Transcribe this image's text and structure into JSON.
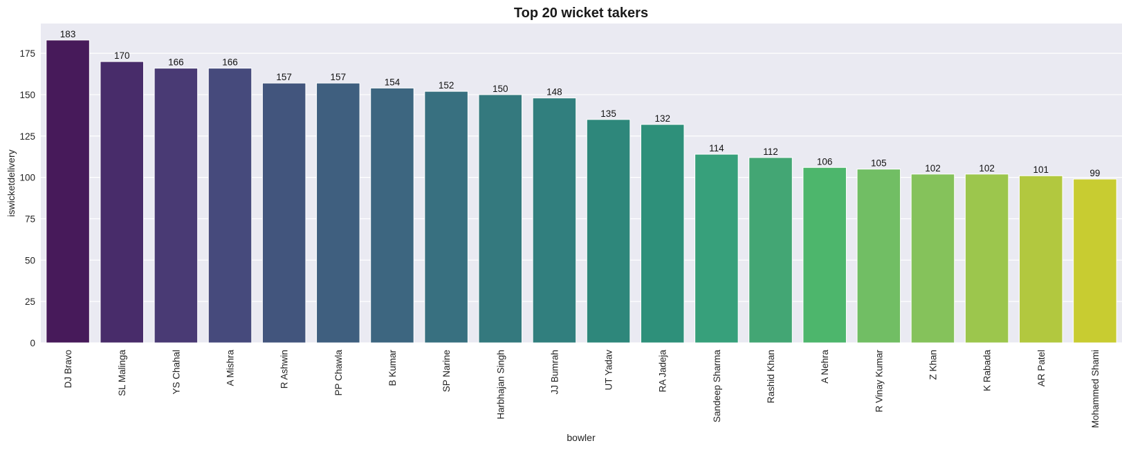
{
  "chart_data": {
    "type": "bar",
    "title": "Top 20 wicket takers",
    "xlabel": "bowler",
    "ylabel": "iswicketdelivery",
    "ylim": [
      0,
      193
    ],
    "yticks": [
      0,
      25,
      50,
      75,
      100,
      125,
      150,
      175
    ],
    "grid": true,
    "background": "#eaeaf2",
    "colormap": "viridis",
    "categories": [
      "DJ Bravo",
      "SL Malinga",
      "YS Chahal",
      "A Mishra",
      "R Ashwin",
      "PP Chawla",
      "B Kumar",
      "SP Narine",
      "Harbhajan Singh",
      "JJ Bumrah",
      "UT Yadav",
      "RA Jadeja",
      "Sandeep Sharma",
      "Rashid Khan",
      "A Nehra",
      "R Vinay Kumar",
      "Z Khan",
      "K Rabada",
      "AR Patel",
      "Mohammed Shami"
    ],
    "values": [
      183,
      170,
      166,
      166,
      157,
      157,
      154,
      152,
      150,
      148,
      135,
      132,
      114,
      112,
      106,
      105,
      102,
      102,
      101,
      99
    ],
    "colors": [
      "#471a5a",
      "#482c6a",
      "#493a74",
      "#464a7c",
      "#42557d",
      "#3f5f7f",
      "#3d6680",
      "#387080",
      "#34797e",
      "#317f7e",
      "#2e877b",
      "#2e907a",
      "#37a07b",
      "#43a674",
      "#4db66c",
      "#71be64",
      "#85c25b",
      "#9cc64d",
      "#b2c83f",
      "#c8cc31"
    ]
  }
}
